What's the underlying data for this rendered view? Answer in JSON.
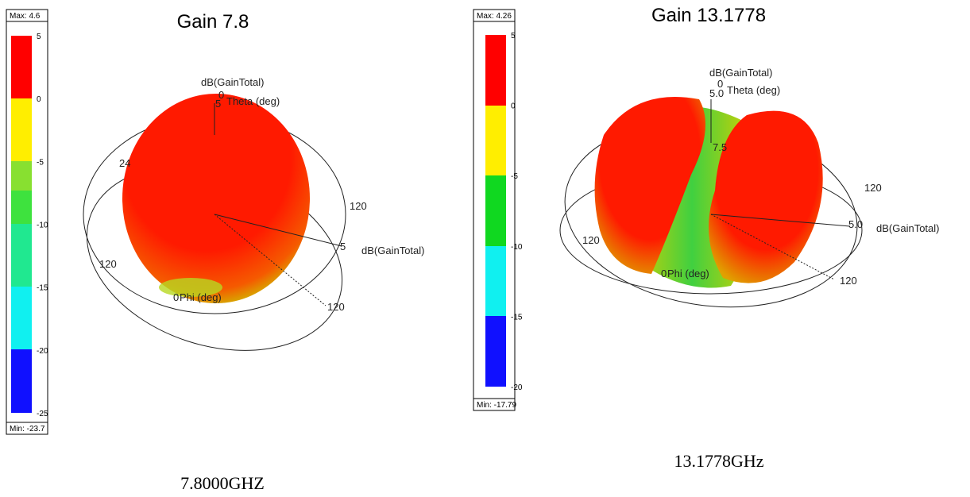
{
  "panels": [
    {
      "title": "Gain 7.8",
      "max": "Max: 4.6",
      "min": "Min: -23.7",
      "scale": [
        "5",
        "0",
        "-5",
        "-10",
        "-15",
        "-20",
        "-25"
      ],
      "labels": [
        "dB(GainTotal)",
        "0",
        "Theta (deg)",
        "5",
        "24",
        "120",
        "5",
        "dB(GainTotal)",
        "120",
        "0",
        "Phi (deg)",
        "120"
      ],
      "caption": "7.8000GHZ"
    },
    {
      "title": "Gain 13.1778",
      "max": "Max: 4.26",
      "min": "Min: -17.79",
      "scale": [
        "5",
        "0",
        "-5",
        "-10",
        "-15",
        "-20"
      ],
      "labels": [
        "dB(GainTotal)",
        "0",
        "5.0",
        "Theta (deg)",
        "7.5",
        "120",
        "5.0",
        "dB(GainTotal)",
        "120",
        "0",
        "Phi (deg)",
        "120"
      ],
      "caption": "13.1778GHz"
    }
  ]
}
